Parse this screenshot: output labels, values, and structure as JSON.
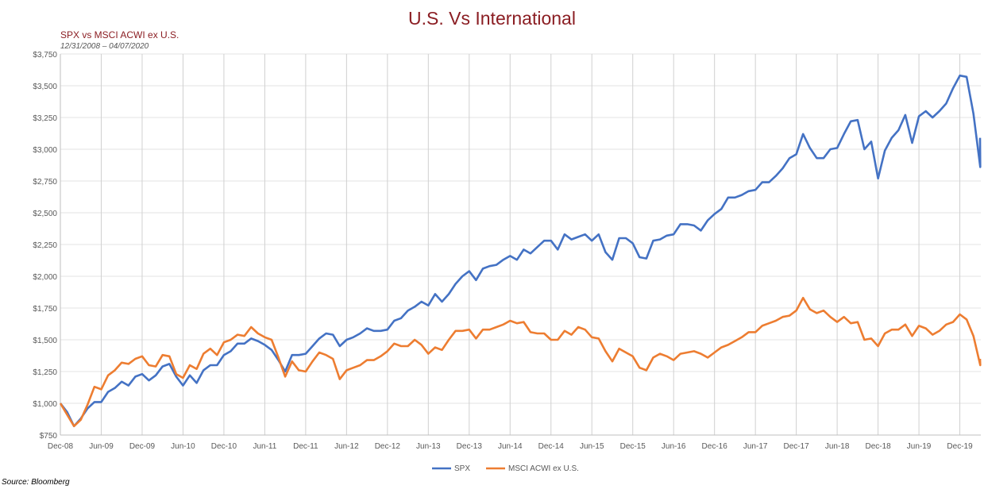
{
  "chart_data": {
    "type": "line",
    "title": "U.S. Vs International",
    "subtitle": "SPX vs MSCI ACWI ex U.S.",
    "date_range": "12/31/2008  – 04/07/2020",
    "source": "Source: Bloomberg",
    "start_month": "2008-12",
    "frequency": "monthly",
    "last_point_note": "final point 04/07/2020",
    "ylim": [
      750,
      3750
    ],
    "y_ticks": [
      "$750",
      "$1,000",
      "$1,250",
      "$1,500",
      "$1,750",
      "$2,000",
      "$2,250",
      "$2,500",
      "$2,750",
      "$3,000",
      "$3,250",
      "$3,500",
      "$3,750"
    ],
    "x_ticks": [
      "Dec-08",
      "Jun-09",
      "Dec-09",
      "Jun-10",
      "Dec-10",
      "Jun-11",
      "Dec-11",
      "Jun-12",
      "Dec-12",
      "Jun-13",
      "Dec-13",
      "Jun-14",
      "Dec-14",
      "Jun-15",
      "Dec-15",
      "Jun-16",
      "Dec-16",
      "Jun-17",
      "Dec-17",
      "Jun-18",
      "Dec-18",
      "Jun-19",
      "Dec-19"
    ],
    "grid": true,
    "legend_position": "bottom",
    "series": [
      {
        "name": "SPX",
        "color": "#4472C4",
        "values": [
          1000,
          930,
          820,
          880,
          960,
          1010,
          1010,
          1090,
          1120,
          1170,
          1140,
          1210,
          1230,
          1180,
          1220,
          1290,
          1310,
          1210,
          1140,
          1220,
          1160,
          1260,
          1300,
          1300,
          1380,
          1410,
          1470,
          1470,
          1510,
          1490,
          1460,
          1420,
          1340,
          1250,
          1380,
          1380,
          1390,
          1450,
          1510,
          1550,
          1540,
          1450,
          1500,
          1520,
          1550,
          1590,
          1570,
          1570,
          1580,
          1650,
          1670,
          1730,
          1760,
          1800,
          1770,
          1860,
          1800,
          1860,
          1940,
          2000,
          2040,
          1970,
          2060,
          2080,
          2090,
          2130,
          2160,
          2130,
          2210,
          2180,
          2230,
          2280,
          2280,
          2210,
          2330,
          2290,
          2310,
          2330,
          2280,
          2330,
          2190,
          2130,
          2300,
          2300,
          2260,
          2150,
          2140,
          2280,
          2290,
          2320,
          2330,
          2410,
          2410,
          2400,
          2360,
          2440,
          2490,
          2530,
          2620,
          2620,
          2640,
          2670,
          2680,
          2740,
          2740,
          2790,
          2850,
          2930,
          2960,
          3120,
          3010,
          2930,
          2930,
          3000,
          3010,
          3120,
          3220,
          3230,
          3000,
          3060,
          2770,
          2990,
          3090,
          3150,
          3270,
          3050,
          3260,
          3300,
          3250,
          3300,
          3360,
          3480,
          3580,
          3570,
          3280,
          2860,
          3090
        ]
      },
      {
        "name": "MSCI ACWI ex U.S.",
        "color": "#ED7D31",
        "values": [
          1000,
          910,
          820,
          870,
          990,
          1130,
          1110,
          1220,
          1260,
          1320,
          1310,
          1350,
          1370,
          1300,
          1290,
          1380,
          1370,
          1230,
          1200,
          1300,
          1270,
          1390,
          1430,
          1380,
          1480,
          1500,
          1540,
          1530,
          1600,
          1550,
          1520,
          1500,
          1360,
          1210,
          1330,
          1260,
          1250,
          1330,
          1400,
          1380,
          1350,
          1190,
          1260,
          1280,
          1300,
          1340,
          1340,
          1370,
          1410,
          1470,
          1450,
          1450,
          1500,
          1460,
          1390,
          1440,
          1420,
          1500,
          1570,
          1570,
          1580,
          1510,
          1580,
          1580,
          1600,
          1620,
          1650,
          1630,
          1640,
          1560,
          1550,
          1550,
          1500,
          1500,
          1570,
          1540,
          1600,
          1580,
          1520,
          1510,
          1410,
          1330,
          1430,
          1400,
          1370,
          1280,
          1260,
          1360,
          1390,
          1370,
          1340,
          1390,
          1400,
          1410,
          1390,
          1360,
          1400,
          1440,
          1460,
          1490,
          1520,
          1560,
          1560,
          1610,
          1630,
          1650,
          1680,
          1690,
          1730,
          1830,
          1740,
          1710,
          1730,
          1680,
          1640,
          1680,
          1630,
          1640,
          1500,
          1510,
          1450,
          1550,
          1580,
          1580,
          1620,
          1530,
          1610,
          1590,
          1540,
          1570,
          1620,
          1640,
          1700,
          1660,
          1530,
          1300,
          1350
        ]
      }
    ]
  }
}
